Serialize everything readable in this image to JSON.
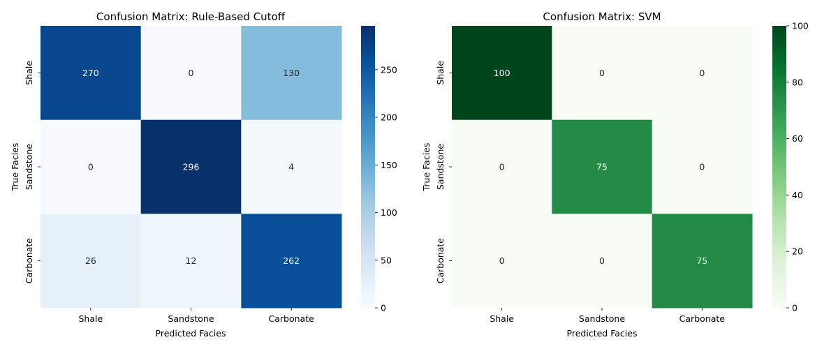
{
  "chart_data": [
    {
      "type": "heatmap",
      "title": "Confusion Matrix: Rule-Based Cutoff",
      "xlabel": "Predicted Facies",
      "ylabel": "True Facies",
      "x_categories": [
        "Shale",
        "Sandstone",
        "Carbonate"
      ],
      "y_categories": [
        "Shale",
        "Sandstone",
        "Carbonate"
      ],
      "values": [
        [
          270,
          0,
          130
        ],
        [
          0,
          296,
          4
        ],
        [
          26,
          12,
          262
        ]
      ],
      "colormap": "Blues",
      "vmin": 0,
      "vmax": 296,
      "colorbar_ticks": [
        0,
        50,
        100,
        150,
        200,
        250
      ]
    },
    {
      "type": "heatmap",
      "title": "Confusion Matrix: SVM",
      "xlabel": "Predicted Facies",
      "ylabel": "True Facies",
      "x_categories": [
        "Shale",
        "Sandstone",
        "Carbonate"
      ],
      "y_categories": [
        "Shale",
        "Sandstone",
        "Carbonate"
      ],
      "values": [
        [
          100,
          0,
          0
        ],
        [
          0,
          75,
          0
        ],
        [
          0,
          0,
          75
        ]
      ],
      "colormap": "Greens",
      "vmin": 0,
      "vmax": 100,
      "colorbar_ticks": [
        0,
        20,
        40,
        60,
        80,
        100
      ]
    }
  ]
}
